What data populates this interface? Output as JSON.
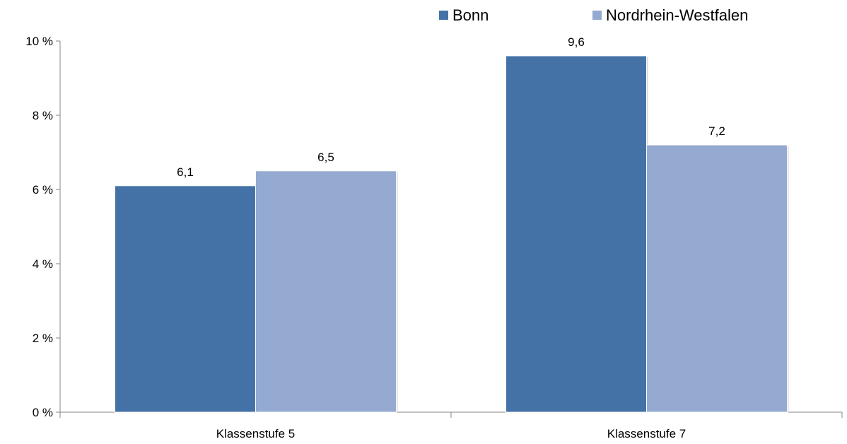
{
  "chart_data": {
    "type": "bar",
    "categories": [
      "Klassenstufe 5",
      "Klassenstufe 7"
    ],
    "series": [
      {
        "name": "Bonn",
        "values": [
          6.1,
          9.6
        ],
        "color": "#4472a6",
        "labels": [
          "6,1",
          "9,6"
        ]
      },
      {
        "name": "Nordrhein-Westfalen",
        "values": [
          6.5,
          7.2
        ],
        "color": "#95aad1",
        "labels": [
          "6,5",
          "7,2"
        ]
      }
    ],
    "ylim": [
      0,
      10
    ],
    "yticks": [
      {
        "value": 0,
        "label": "0 %"
      },
      {
        "value": 2,
        "label": "2 %"
      },
      {
        "value": 4,
        "label": "4 %"
      },
      {
        "value": 6,
        "label": "6 %"
      },
      {
        "value": 8,
        "label": "8 %"
      },
      {
        "value": 10,
        "label": "10 %"
      }
    ],
    "grid": false,
    "legend_position": "top-right"
  }
}
